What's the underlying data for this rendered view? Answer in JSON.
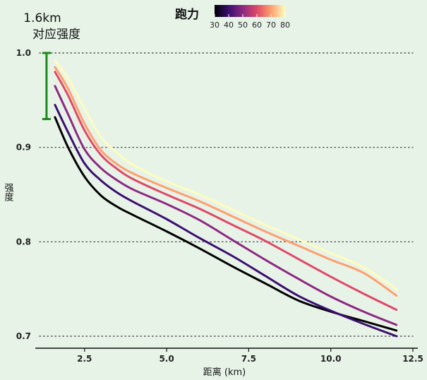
{
  "chart_data": {
    "type": "line",
    "xlabel": "距离 (km)",
    "ylabel": "强度",
    "xlim": [
      1.0,
      12.5
    ],
    "ylim": [
      0.69,
      1.0
    ],
    "x_ticks": [
      "2.5",
      "5.0",
      "7.5",
      "10.0",
      "12.5"
    ],
    "y_ticks": [
      "0.7",
      "0.8",
      "0.9",
      "1.0"
    ],
    "grid": "horizontal-dotted",
    "legend": {
      "title": "跑力",
      "placement": "top",
      "type": "colorbar",
      "ticks": [
        "30",
        "40",
        "50",
        "60",
        "70",
        "80"
      ],
      "range": [
        30,
        80
      ],
      "colors": [
        "#000004",
        "#3b0f70",
        "#8c2981",
        "#de4968",
        "#fe9f6d",
        "#fcfdbf"
      ]
    },
    "annotation": {
      "line1": "1.6km",
      "line2": "对应强度",
      "x": 1.6,
      "y_range": [
        0.93,
        1.0
      ],
      "color": "#1a8a1a"
    },
    "x": [
      1.6,
      2.0,
      2.5,
      3.0,
      3.5,
      4.0,
      5.0,
      6.0,
      7.0,
      8.0,
      9.0,
      10.0,
      11.0,
      12.0
    ],
    "series": [
      {
        "value": 30,
        "color": "#000000",
        "values": [
          0.932,
          0.9,
          0.869,
          0.849,
          0.837,
          0.828,
          0.811,
          0.793,
          0.774,
          0.756,
          0.738,
          0.726,
          0.716,
          0.706
        ]
      },
      {
        "value": 40,
        "color": "#3b0f70",
        "values": [
          0.945,
          0.916,
          0.883,
          0.865,
          0.852,
          0.842,
          0.824,
          0.804,
          0.785,
          0.764,
          0.743,
          0.727,
          0.713,
          0.7
        ]
      },
      {
        "value": 50,
        "color": "#8c2981",
        "values": [
          0.965,
          0.935,
          0.898,
          0.878,
          0.865,
          0.855,
          0.84,
          0.823,
          0.802,
          0.781,
          0.761,
          0.742,
          0.726,
          0.712
        ]
      },
      {
        "value": 60,
        "color": "#de4968",
        "values": [
          0.98,
          0.955,
          0.918,
          0.892,
          0.877,
          0.866,
          0.85,
          0.835,
          0.818,
          0.801,
          0.782,
          0.763,
          0.745,
          0.728
        ]
      },
      {
        "value": 70,
        "color": "#fe9f6d",
        "values": [
          0.985,
          0.962,
          0.925,
          0.897,
          0.882,
          0.872,
          0.857,
          0.843,
          0.827,
          0.811,
          0.796,
          0.781,
          0.767,
          0.743
        ]
      },
      {
        "value": 80,
        "color": "#fcfdbf",
        "values": [
          0.992,
          0.973,
          0.941,
          0.911,
          0.894,
          0.881,
          0.864,
          0.85,
          0.834,
          0.818,
          0.803,
          0.788,
          0.773,
          0.75
        ]
      }
    ]
  }
}
